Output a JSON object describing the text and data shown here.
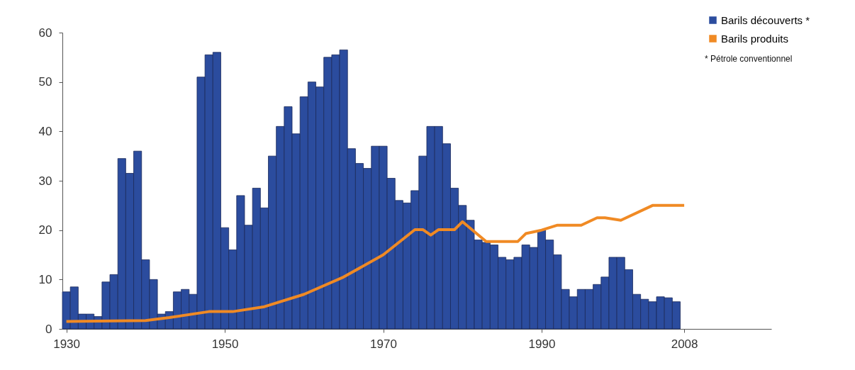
{
  "chart_data": {
    "type": "bar",
    "x": [
      1930,
      1931,
      1932,
      1933,
      1934,
      1935,
      1936,
      1937,
      1938,
      1939,
      1940,
      1941,
      1942,
      1943,
      1944,
      1945,
      1946,
      1947,
      1948,
      1949,
      1950,
      1951,
      1952,
      1953,
      1954,
      1955,
      1956,
      1957,
      1958,
      1959,
      1960,
      1961,
      1962,
      1963,
      1964,
      1965,
      1966,
      1967,
      1968,
      1969,
      1970,
      1971,
      1972,
      1973,
      1974,
      1975,
      1976,
      1977,
      1978,
      1979,
      1980,
      1981,
      1982,
      1983,
      1984,
      1985,
      1986,
      1987,
      1988,
      1989,
      1990,
      1991,
      1992,
      1993,
      1994,
      1995,
      1996,
      1997,
      1998,
      1999,
      2000,
      2001,
      2002,
      2003,
      2004,
      2005,
      2006,
      2007
    ],
    "series": [
      {
        "name": "Barils découverts *",
        "color": "#2b4c9e",
        "values": [
          7.5,
          8.5,
          3,
          3,
          2.5,
          9.5,
          11,
          34.5,
          31.5,
          36,
          14,
          10,
          3,
          3.5,
          7.5,
          8,
          7,
          51,
          55.5,
          56,
          20.5,
          16,
          27,
          21,
          28.5,
          24.5,
          35,
          41,
          45,
          39.5,
          47,
          50,
          49,
          55,
          55.5,
          56.5,
          36.5,
          33.5,
          32.5,
          37,
          37,
          30.5,
          26,
          25.5,
          28,
          35,
          41,
          41,
          37.5,
          28.5,
          25,
          22,
          18,
          17.5,
          17,
          14.5,
          14,
          14.5,
          17,
          16.5,
          20,
          18,
          15,
          8,
          6.5,
          8,
          8,
          9,
          10.5,
          14.5,
          14.5,
          12,
          7,
          6,
          5.5,
          6.5,
          6.3,
          5.5
        ]
      },
      {
        "name": "Barils produits",
        "type": "line",
        "color": "#f08a24",
        "x": [
          1930,
          1940,
          1943,
          1948,
          1951,
          1955,
          1960,
          1965,
          1970,
          1974,
          1975,
          1976,
          1977,
          1979,
          1980,
          1983,
          1987,
          1988,
          1990,
          1992,
          1995,
          1997,
          1998,
          2000,
          2004,
          2008
        ],
        "values": [
          1.5,
          1.7,
          2.3,
          3.5,
          3.5,
          4.5,
          7,
          10.5,
          15,
          20.1,
          20.1,
          19,
          20.1,
          20.1,
          21.7,
          17.7,
          17.7,
          19.3,
          20,
          21,
          21,
          22.5,
          22.5,
          22,
          25,
          25
        ]
      }
    ],
    "xlim": [
      1929.5,
      2019
    ],
    "xticks": [
      1930,
      1950,
      1970,
      1990,
      2008
    ],
    "ylim": [
      0,
      60
    ],
    "yticks": [
      0,
      10,
      20,
      30,
      40,
      50,
      60
    ],
    "grid": false,
    "legend": "top right",
    "annotations": [
      "* Pétrole conventionnel"
    ]
  }
}
